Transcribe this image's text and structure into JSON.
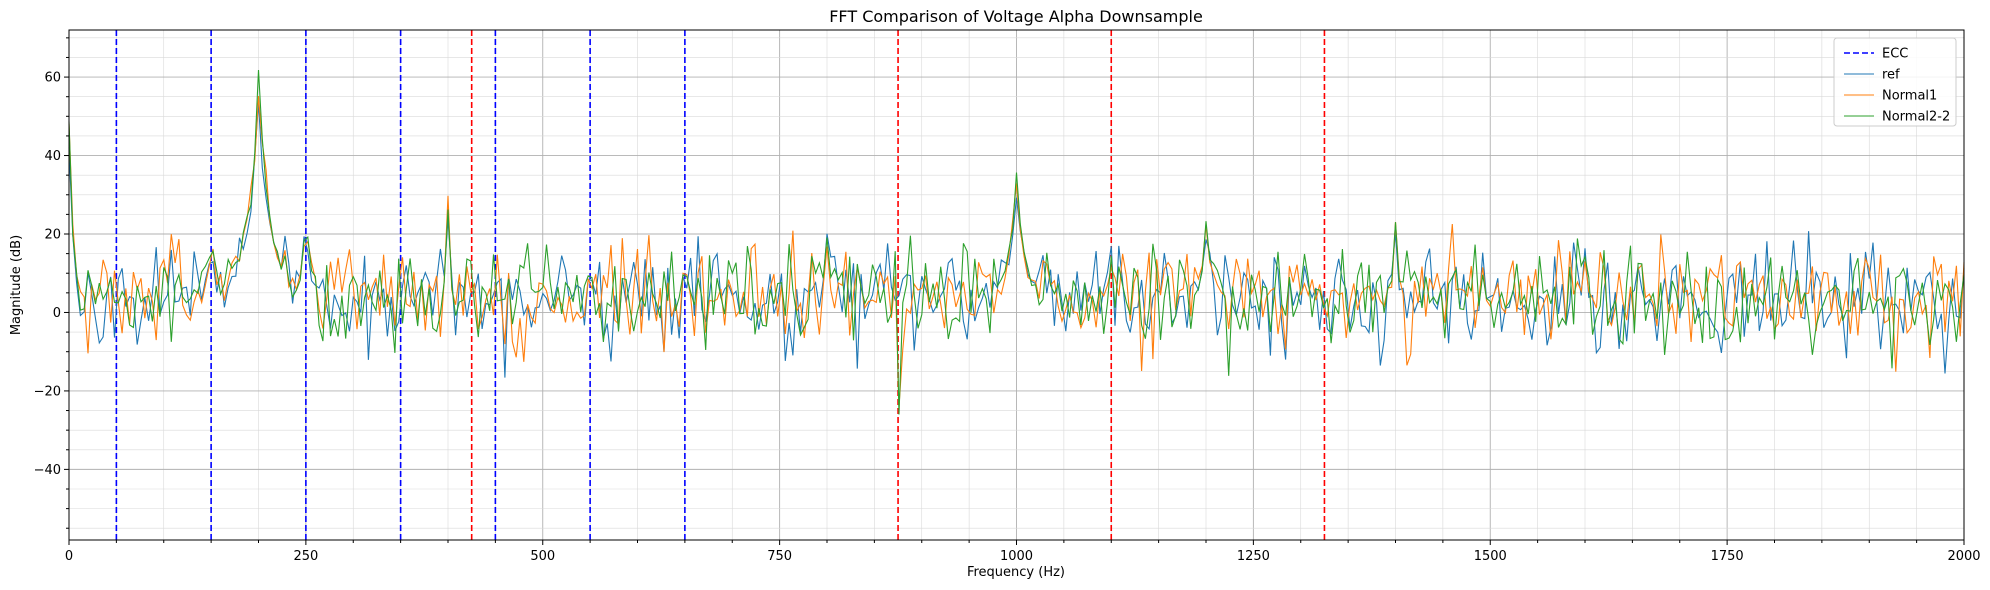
{
  "chart_data": {
    "type": "line",
    "title": "FFT Comparison of Voltage Alpha Downsample",
    "xlabel": "Frequency (Hz)",
    "ylabel": "Magnitude (dB)",
    "xlim": [
      0,
      2000
    ],
    "ylim": [
      -58,
      72
    ],
    "xticks": [
      0,
      250,
      500,
      750,
      1000,
      1250,
      1500,
      1750,
      2000
    ],
    "yticks": [
      -40,
      -20,
      0,
      20,
      40,
      60
    ],
    "minor_grid_step_x": 50,
    "minor_grid_step_y": 5,
    "grid": true,
    "legend_position": "top-right",
    "ecc_label": "ECC",
    "ecc_lines": [
      {
        "x": 50,
        "color": "#0000ff"
      },
      {
        "x": 150,
        "color": "#0000ff"
      },
      {
        "x": 250,
        "color": "#0000ff"
      },
      {
        "x": 350,
        "color": "#0000ff"
      },
      {
        "x": 425,
        "color": "#ff0000"
      },
      {
        "x": 450,
        "color": "#0000ff"
      },
      {
        "x": 550,
        "color": "#0000ff"
      },
      {
        "x": 650,
        "color": "#0000ff"
      },
      {
        "x": 875,
        "color": "#ff0000"
      },
      {
        "x": 1100,
        "color": "#ff0000"
      },
      {
        "x": 1325,
        "color": "#ff0000"
      }
    ],
    "series": [
      {
        "name": "ref",
        "color": "#1f77b4",
        "seed": 11
      },
      {
        "name": "Normal1",
        "color": "#ff7f0e",
        "seed": 23
      },
      {
        "name": "Normal2-2",
        "color": "#2ca02c",
        "seed": 37
      }
    ],
    "peaks": [
      {
        "x": 0,
        "y": 48,
        "width": 4
      },
      {
        "x": 150,
        "y": 25,
        "width": 3
      },
      {
        "x": 200,
        "y": 58,
        "width": 12
      },
      {
        "x": 250,
        "y": 27,
        "width": 4
      },
      {
        "x": 400,
        "y": 27,
        "width": 2
      },
      {
        "x": 550,
        "y": 18,
        "width": 2
      },
      {
        "x": 650,
        "y": 18,
        "width": 2
      },
      {
        "x": 800,
        "y": 20,
        "width": 2
      },
      {
        "x": 1000,
        "y": 33,
        "width": 8
      },
      {
        "x": 1200,
        "y": 23,
        "width": 4
      },
      {
        "x": 1400,
        "y": 22,
        "width": 3
      },
      {
        "x": 1600,
        "y": 14,
        "width": 2
      }
    ]
  }
}
